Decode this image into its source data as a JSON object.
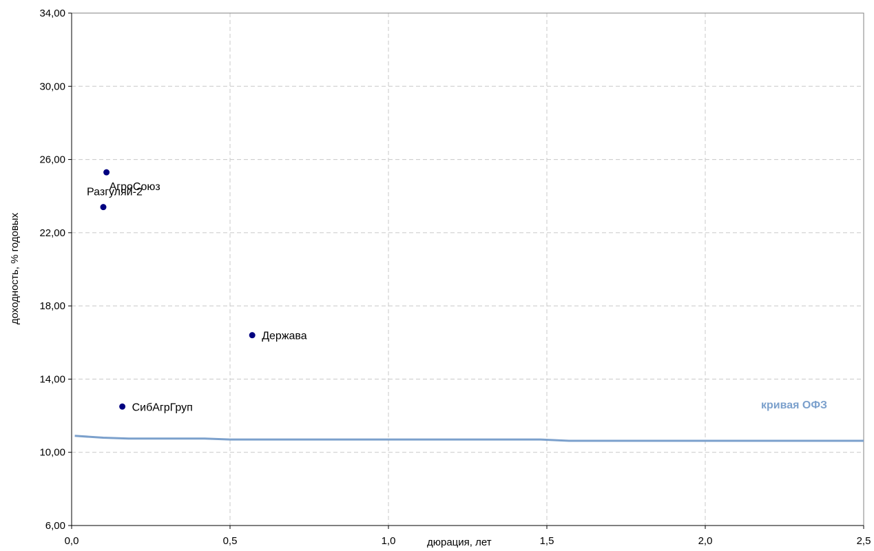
{
  "chart_data": {
    "type": "scatter",
    "xlabel": "дюрация, лет",
    "ylabel": "доходность, % годовых",
    "xlim": [
      0,
      2.5
    ],
    "ylim": [
      6,
      34
    ],
    "x_ticks": [
      "0,0",
      "0,5",
      "1,0",
      "1,5",
      "2,0",
      "2,5"
    ],
    "y_ticks": [
      "6,00",
      "10,00",
      "14,00",
      "18,00",
      "22,00",
      "26,00",
      "30,00",
      "34,00"
    ],
    "grid": true,
    "points": [
      {
        "name": "АгроСоюз",
        "x": 0.11,
        "y": 25.3
      },
      {
        "name": "Разгуляй-2",
        "x": 0.1,
        "y": 23.4
      },
      {
        "name": "Держава",
        "x": 0.57,
        "y": 16.4
      },
      {
        "name": "СибАгрГруп",
        "x": 0.16,
        "y": 12.5
      }
    ],
    "curve": {
      "name": "кривая ОФЗ",
      "color": "#7ba0cc",
      "x": [
        0.01,
        0.1,
        0.18,
        0.42,
        0.5,
        1.48,
        1.57,
        2.5
      ],
      "y": [
        10.9,
        10.8,
        10.75,
        10.75,
        10.7,
        10.7,
        10.63,
        10.63
      ]
    },
    "point_color": "#000080"
  }
}
